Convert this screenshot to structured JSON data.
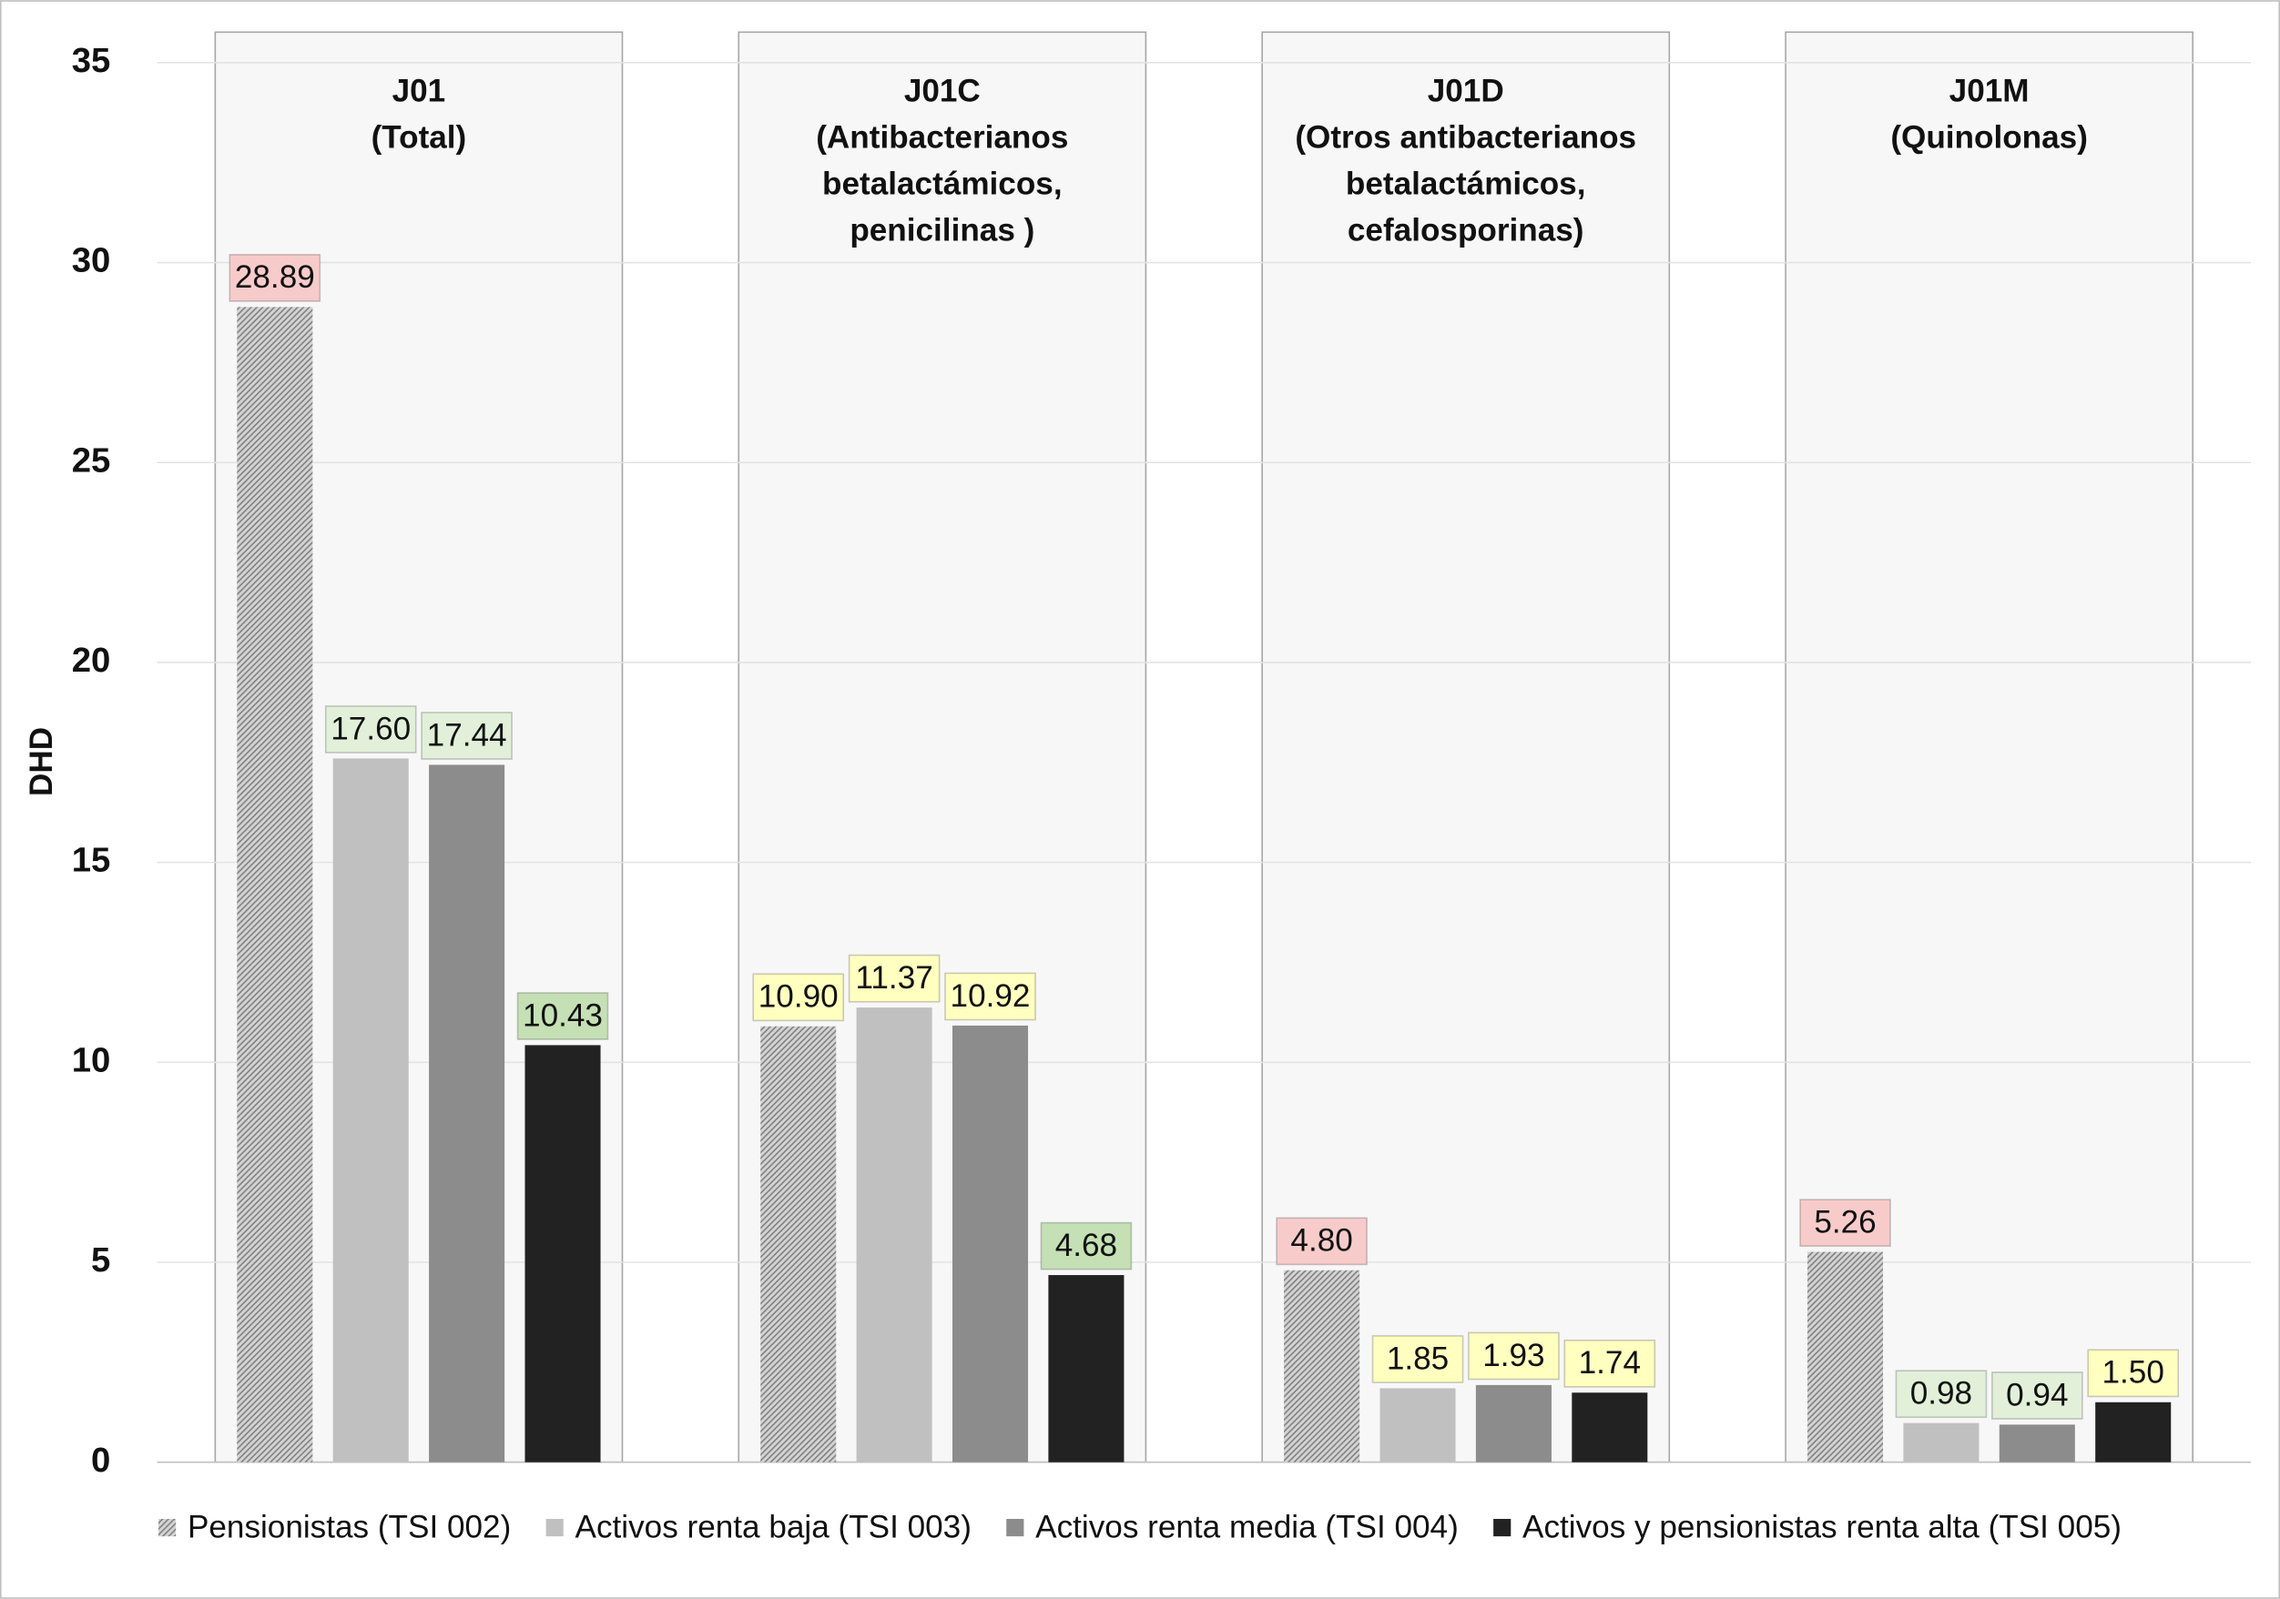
{
  "chart_data": {
    "type": "bar",
    "y_label": "DHD",
    "categories": [
      [
        "J01",
        "(Total)"
      ],
      [
        "J01C",
        "(Antibacterianos",
        "betalactámicos,",
        "penicilinas )"
      ],
      [
        "J01D",
        "(Otros antibacterianos",
        "betalactámicos,",
        "cefalosporinas)"
      ],
      [
        "J01M",
        "(Quinolonas)"
      ]
    ],
    "series": [
      {
        "name": "Pensionistas (TSI 002)",
        "color": "#a6a6a6",
        "pattern": "hatch",
        "values": [
          28.89,
          10.9,
          4.8,
          5.26
        ],
        "value_labels": [
          "28.89",
          "10.90",
          "4.80",
          "5.26"
        ],
        "label_colors": [
          "#f8cbcb",
          "#ffffc0",
          "#f8cbcb",
          "#f8cbcb"
        ]
      },
      {
        "name": "Activos renta baja (TSI 003)",
        "color": "#c0c0c0",
        "values": [
          17.6,
          11.37,
          1.85,
          0.98
        ],
        "value_labels": [
          "17.60",
          "11.37",
          "1.85",
          "0.98"
        ],
        "label_colors": [
          "#e2f0d9",
          "#ffffc0",
          "#ffffc0",
          "#e2f0d9"
        ]
      },
      {
        "name": "Activos renta media (TSI 004)",
        "color": "#8c8c8c",
        "values": [
          17.44,
          10.92,
          1.93,
          0.94
        ],
        "value_labels": [
          "17.44",
          "10.92",
          "1.93",
          "0.94"
        ],
        "label_colors": [
          "#e2f0d9",
          "#ffffc0",
          "#ffffc0",
          "#e2f0d9"
        ]
      },
      {
        "name": "Activos y pensionistas renta alta (TSI 005)",
        "color": "#222222",
        "values": [
          10.43,
          4.68,
          1.74,
          1.5
        ],
        "value_labels": [
          "10.43",
          "4.68",
          "1.74",
          "1.50"
        ],
        "label_colors": [
          "#c5e0b4",
          "#c5e0b4",
          "#ffffc0",
          "#ffffc0"
        ]
      }
    ],
    "ylim": [
      0,
      35
    ],
    "yticks": [
      0,
      5,
      10,
      15,
      20,
      25,
      30,
      35
    ],
    "grid": true,
    "legend": "bottom"
  }
}
